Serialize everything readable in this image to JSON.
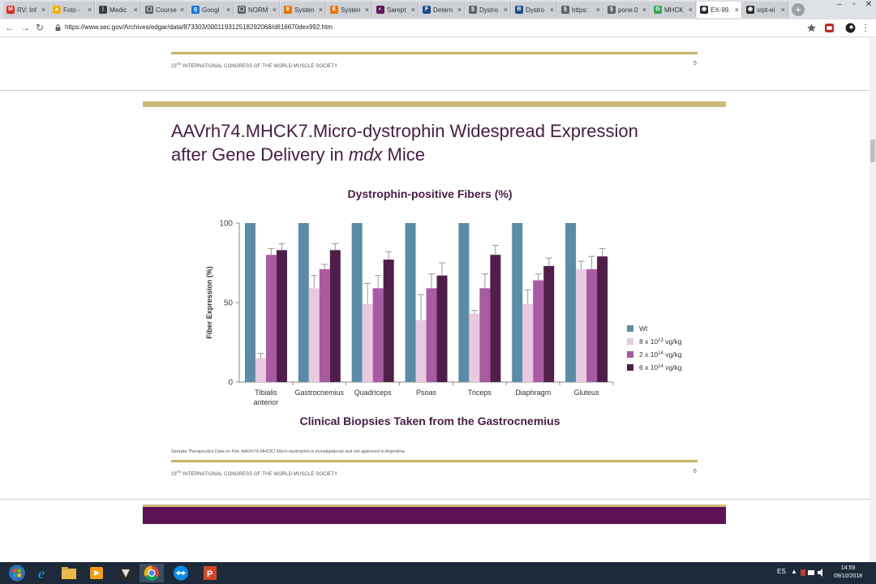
{
  "browser": {
    "tabs": [
      {
        "title": "RV: Inf",
        "color": "#d93025",
        "glyph": "M",
        "active": false
      },
      {
        "title": "Foto -",
        "color": "#f4b400",
        "glyph": "▲",
        "active": false
      },
      {
        "title": "Medic",
        "color": "#3c4043",
        "glyph": "⋮",
        "active": false
      },
      {
        "title": "Course",
        "color": "#5f6368",
        "glyph": "▢",
        "active": false
      },
      {
        "title": "Googl",
        "color": "#1a73e8",
        "glyph": "g",
        "active": false
      },
      {
        "title": "NORM",
        "color": "#5f6368",
        "glyph": "▢",
        "active": false
      },
      {
        "title": "Systen",
        "color": "#e8710a",
        "glyph": "E",
        "active": false
      },
      {
        "title": "Systen",
        "color": "#e8710a",
        "glyph": "E",
        "active": false
      },
      {
        "title": "Sarept",
        "color": "#5b1b56",
        "glyph": "◐",
        "active": false
      },
      {
        "title": "Detern",
        "color": "#1a4d8c",
        "glyph": "F",
        "active": false
      },
      {
        "title": "Dystro",
        "color": "#5f6368",
        "glyph": "§",
        "active": false
      },
      {
        "title": "Dystro",
        "color": "#1a4d8c",
        "glyph": "B",
        "active": false
      },
      {
        "title": "https:",
        "color": "#5f6368",
        "glyph": "§",
        "active": false
      },
      {
        "title": "pone.0",
        "color": "#5f6368",
        "glyph": "§",
        "active": false
      },
      {
        "title": "MHCK",
        "color": "#34a853",
        "glyph": "G",
        "active": false
      },
      {
        "title": "EX-99.",
        "color": "#2b2b2b",
        "glyph": "◉",
        "active": true
      },
      {
        "title": "srpt-ei",
        "color": "#2b2b2b",
        "glyph": "◉",
        "active": false
      }
    ],
    "close_glyph": "×",
    "new_tab_glyph": "+",
    "url": "https://www.sec.gov/Archives/edgar/data/873303/000119312518292068/d616670dex992.htm"
  },
  "slide_prev": {
    "footer_num": "23",
    "footer_sup": "RD",
    "footer_text": " INTERNATIONAL CONGRESS OF THE WORLD MUSCLE SOCIETY",
    "page": "5"
  },
  "slide": {
    "title_line1": "AAVrh74.MHCK7.Micro-dystrophin Widespread Expression",
    "title_line2_pre": "after Gene Delivery in ",
    "title_line2_italic": "mdx",
    "title_line2_post": " Mice",
    "footnote": "Sarepta Therapeutics Data on File. AAVrh74.MHCK7.Micro-dystrophin is investigational and not approved in Argentina.",
    "footer_num": "23",
    "footer_sup": "RD",
    "footer_text": " INTERNATIONAL CONGRESS OF THE WORLD MUSCLE SOCIETY",
    "page": "6"
  },
  "chart_data": {
    "type": "bar",
    "title": "Dystrophin-positive Fibers (%)",
    "subtitle": "Clinical Biopsies Taken from the Gastrocnemius",
    "ylabel": "Fiber Expression (%)",
    "xlabel": "",
    "ylim": [
      0,
      100
    ],
    "yticks": [
      "0",
      "50",
      "100"
    ],
    "categories": [
      [
        "Tibialis",
        "anterior"
      ],
      [
        "Gastrocnemius"
      ],
      [
        "Quadriceps"
      ],
      [
        "Psoas"
      ],
      [
        "Triceps"
      ],
      [
        "Diaphragm"
      ],
      [
        "Gluteus"
      ]
    ],
    "series": [
      {
        "name": "Wt",
        "color": "#5a8ca8",
        "values": [
          100,
          100,
          100,
          100,
          100,
          100,
          100
        ],
        "errors": [
          0,
          0,
          0,
          0,
          0,
          0,
          0
        ]
      },
      {
        "name": "8 x 10^13 vg/kg",
        "color": "#e8c9e0",
        "values": [
          15,
          59,
          49,
          39,
          43,
          49,
          71
        ],
        "errors": [
          3,
          8,
          13,
          16,
          2,
          9,
          5
        ]
      },
      {
        "name": "2 x 10^14 vg/kg",
        "color": "#a85ba3",
        "values": [
          80,
          71,
          59,
          59,
          59,
          64,
          71
        ],
        "errors": [
          4,
          3,
          8,
          9,
          9,
          4,
          8
        ]
      },
      {
        "name": "6 x 10^14 vg/kg",
        "color": "#4f1f4a",
        "values": [
          83,
          83,
          77,
          67,
          80,
          73,
          79
        ],
        "errors": [
          4,
          4,
          5,
          8,
          6,
          5,
          5
        ]
      }
    ],
    "legend": [
      {
        "base": "Wt",
        "exp": "",
        "unit": ""
      },
      {
        "base": "8 x 10",
        "exp": "13",
        "unit": " vg/kg"
      },
      {
        "base": "2 x 10",
        "exp": "14",
        "unit": " vg/kg"
      },
      {
        "base": "6 x 10",
        "exp": "14",
        "unit": " vg/kg"
      }
    ],
    "legend_position": "right",
    "grid": false
  },
  "taskbar": {
    "lang": "ES",
    "time": "14:59",
    "date": "09/10/2018"
  }
}
